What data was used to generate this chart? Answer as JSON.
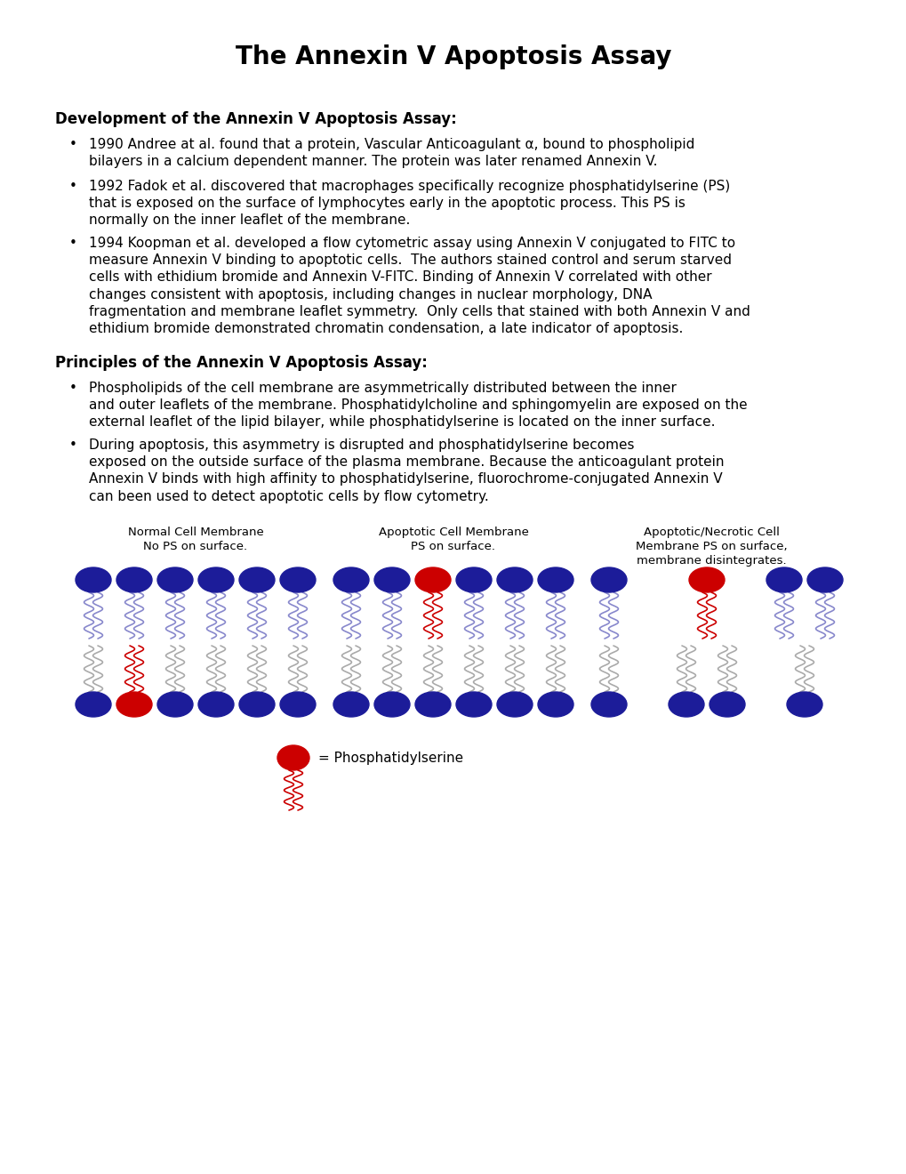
{
  "title": "The Annexin V Apoptosis Assay",
  "section1_header": "Development of the Annexin V Apoptosis Assay:",
  "section1_bullets": [
    "1990 Andree at al. found that a protein, Vascular Anticoagulant α, bound to phospholipid\nbilayers in a calcium dependent manner. The protein was later renamed Annexin V.",
    "1992 Fadok et al. discovered that macrophages specifically recognize phosphatidylserine (PS)\nthat is exposed on the surface of lymphocytes early in the apoptotic process. This PS is\nnormally on the inner leaflet of the membrane.",
    "1994 Koopman et al. developed a flow cytometric assay using Annexin V conjugated to FITC to\nmeasure Annexin V binding to apoptotic cells.  The authors stained control and serum starved\ncells with ethidium bromide and Annexin V-FITC. Binding of Annexin V correlated with other\nchanges consistent with apoptosis, including changes in nuclear morphology, DNA\nfragmentation and membrane leaflet symmetry.  Only cells that stained with both Annexin V and\nethidium bromide demonstrated chromatin condensation, a late indicator of apoptosis."
  ],
  "section2_header": "Principles of the Annexin V Apoptosis Assay:",
  "section2_bullets": [
    "Phospholipids of the cell membrane are asymmetrically distributed between the inner\nand outer leaflets of the membrane. Phosphatidylcholine and sphingomyelin are exposed on the\nexternal leaflet of the lipid bilayer, while phosphatidylserine is located on the inner surface.",
    "During apoptosis, this asymmetry is disrupted and phosphatidylserine becomes\nexposed on the outside surface of the plasma membrane. Because the anticoagulant protein\nAnnexin V binds with high affinity to phosphatidylserine, fluorochrome-conjugated Annexin V\ncan been used to detect apoptotic cells by flow cytometry."
  ],
  "diagram_labels": [
    "Normal Cell Membrane\nNo PS on surface.",
    "Apoptotic Cell Membrane\nPS on surface.",
    "Apoptotic/Necrotic Cell\nMembrane PS on surface,\nmembrane disintegrates."
  ],
  "legend_text": "= Phosphatidylserine",
  "blue_color": "#1c1c99",
  "red_color": "#cc0000",
  "tail_blue": "#8888cc",
  "tail_gray": "#aaaaaa",
  "bg_color": "#ffffff",
  "text_color": "#000000",
  "title_fontsize": 20,
  "header_fontsize": 12,
  "body_fontsize": 11,
  "diagram_label_fontsize": 9.5
}
